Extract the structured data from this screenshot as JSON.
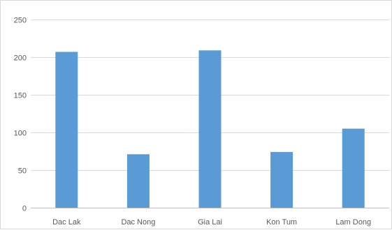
{
  "chart_data": {
    "type": "bar",
    "categories": [
      "Dac Lak",
      "Dac Nong",
      "Gia Lai",
      "Kon Tum",
      "Lam Dong"
    ],
    "values": [
      207,
      71,
      209,
      74,
      105
    ],
    "title": "",
    "xlabel": "",
    "ylabel": "",
    "ylim": [
      0,
      250
    ],
    "yticks": [
      "0",
      "50",
      "100",
      "150",
      "200",
      "250"
    ],
    "grid": true,
    "legend": "none",
    "bar_color": "#5b9bd5"
  }
}
